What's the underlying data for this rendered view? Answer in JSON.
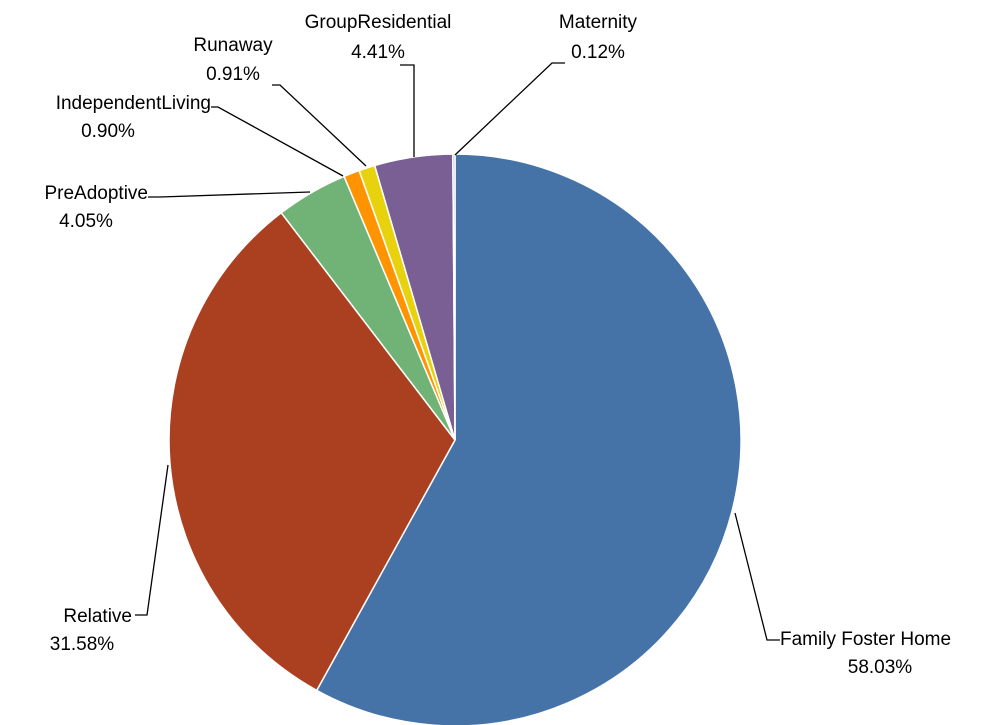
{
  "chart_data": {
    "type": "pie",
    "title": "",
    "legend": "none",
    "start_angle_deg": 0,
    "direction": "clockwise",
    "slices": [
      {
        "category": "Family Foster Home",
        "value": 58.03,
        "label": "58.03%",
        "color": "#4572A7"
      },
      {
        "category": "Relative",
        "value": 31.58,
        "label": "31.58%",
        "color": "#AA4020"
      },
      {
        "category": "PreAdoptive",
        "value": 4.05,
        "label": "4.05%",
        "color": "#71B276"
      },
      {
        "category": "IndependentLiving",
        "value": 0.9,
        "label": "0.90%",
        "color": "#FF9400"
      },
      {
        "category": "Runaway",
        "value": 0.91,
        "label": "0.91%",
        "color": "#E8D20E"
      },
      {
        "category": "GroupResidential",
        "value": 4.41,
        "label": "4.41%",
        "color": "#7A5F94"
      },
      {
        "category": "Maternity",
        "value": 0.12,
        "label": "0.12%",
        "color": "#9CB3D6"
      }
    ]
  }
}
